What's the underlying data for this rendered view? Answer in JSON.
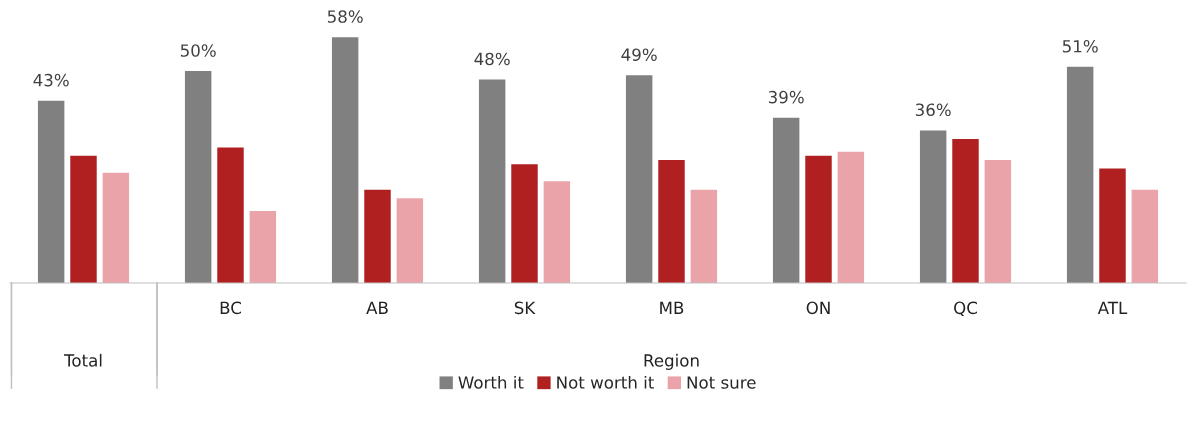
{
  "chart_data": {
    "type": "bar",
    "categories": [
      null,
      "BC",
      "AB",
      "SK",
      "MB",
      "ON",
      "QC",
      "ATL"
    ],
    "series": [
      {
        "name": "Worth it",
        "color": "#808080",
        "values": [
          43,
          50,
          58,
          48,
          49,
          39,
          36,
          51
        ],
        "value_labels": [
          "43%",
          "50%",
          "58%",
          "48%",
          "49%",
          "39%",
          "36%",
          "51%"
        ]
      },
      {
        "name": "Not worth it",
        "color": "#b02020",
        "values": [
          30,
          32,
          22,
          28,
          29,
          30,
          34,
          27
        ]
      },
      {
        "name": "Not sure",
        "color": "#eba3aa",
        "values": [
          26,
          17,
          20,
          24,
          22,
          31,
          29,
          22
        ]
      }
    ],
    "annotations": [
      "Total",
      "Region"
    ],
    "legend": "bottom"
  }
}
